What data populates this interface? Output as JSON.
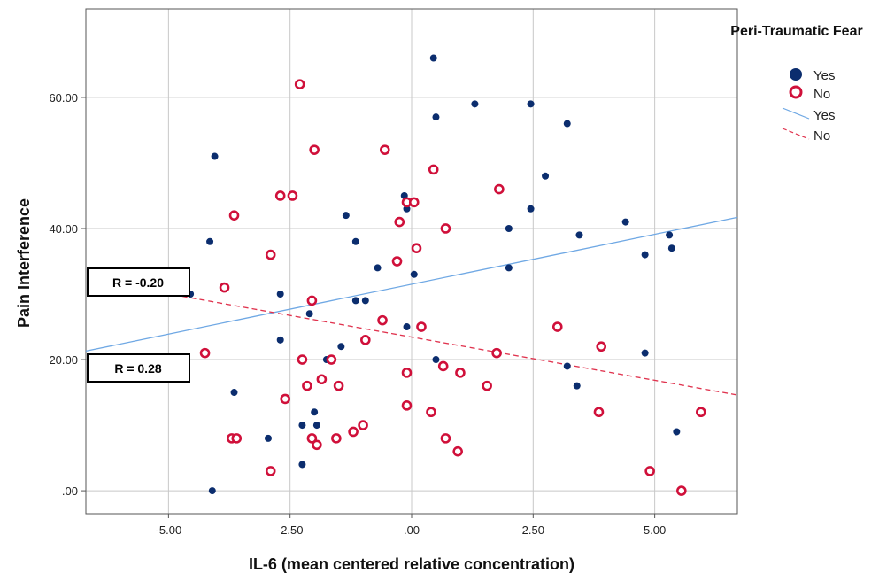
{
  "chart_data": {
    "type": "scatter",
    "title": "",
    "xlabel": "IL-6 (mean centered relative concentration)",
    "ylabel": "Pain Interference",
    "xlim": [
      -6.7,
      6.7
    ],
    "ylim": [
      -3.5,
      73.5
    ],
    "x_ticks": [
      -5,
      -2.5,
      0,
      2.5,
      5
    ],
    "x_tick_labels": [
      "-5.00",
      "-2.50",
      ".00",
      "2.50",
      "5.00"
    ],
    "y_ticks": [
      0,
      20,
      40,
      60
    ],
    "y_tick_labels": [
      ".00",
      "20.00",
      "40.00",
      "60.00"
    ],
    "grid": true,
    "legend_position": "top-right",
    "legend_title": "Peri-Traumatic Fear",
    "colors": {
      "yes": "#0b2d6e",
      "no": "#d0103a",
      "yes_line": "#6fa8e4",
      "no_line": "#e0344f"
    },
    "series": [
      {
        "name": "Yes",
        "marker": "filled-circle",
        "points": [
          [
            0.45,
            66
          ],
          [
            1.3,
            59
          ],
          [
            2.45,
            59
          ],
          [
            3.2,
            56
          ],
          [
            0.5,
            57
          ],
          [
            -4.05,
            51
          ],
          [
            2.75,
            48
          ],
          [
            -0.15,
            45
          ],
          [
            -0.1,
            43
          ],
          [
            2.45,
            43
          ],
          [
            -1.35,
            42
          ],
          [
            4.4,
            41
          ],
          [
            2.0,
            40
          ],
          [
            -4.15,
            38
          ],
          [
            -1.15,
            38
          ],
          [
            3.45,
            39
          ],
          [
            5.3,
            39
          ],
          [
            5.35,
            37
          ],
          [
            4.8,
            36
          ],
          [
            -2.9,
            36
          ],
          [
            -0.7,
            34
          ],
          [
            2.0,
            34
          ],
          [
            0.05,
            33
          ],
          [
            -4.55,
            30
          ],
          [
            -2.7,
            30
          ],
          [
            -1.15,
            29
          ],
          [
            -0.95,
            29
          ],
          [
            -2.1,
            27
          ],
          [
            -0.1,
            25
          ],
          [
            -2.7,
            23
          ],
          [
            -1.45,
            22
          ],
          [
            4.8,
            21
          ],
          [
            -1.75,
            20
          ],
          [
            0.5,
            20
          ],
          [
            3.2,
            19
          ],
          [
            -3.65,
            15
          ],
          [
            3.4,
            16
          ],
          [
            -2.0,
            12
          ],
          [
            -2.25,
            10
          ],
          [
            -1.95,
            10
          ],
          [
            -2.95,
            8
          ],
          [
            5.45,
            9
          ],
          [
            -2.25,
            4
          ],
          [
            -4.1,
            0
          ]
        ]
      },
      {
        "name": "No",
        "marker": "open-circle",
        "points": [
          [
            -2.3,
            62
          ],
          [
            -2.0,
            52
          ],
          [
            -0.55,
            52
          ],
          [
            0.45,
            49
          ],
          [
            1.8,
            46
          ],
          [
            -2.7,
            45
          ],
          [
            -2.45,
            45
          ],
          [
            -0.1,
            44
          ],
          [
            0.05,
            44
          ],
          [
            -3.65,
            42
          ],
          [
            -0.25,
            41
          ],
          [
            0.7,
            40
          ],
          [
            0.1,
            37
          ],
          [
            -2.9,
            36
          ],
          [
            -0.3,
            35
          ],
          [
            -3.85,
            31
          ],
          [
            -2.05,
            29
          ],
          [
            -0.6,
            26
          ],
          [
            0.2,
            25
          ],
          [
            3.0,
            25
          ],
          [
            -0.95,
            23
          ],
          [
            3.9,
            22
          ],
          [
            -4.25,
            21
          ],
          [
            1.75,
            21
          ],
          [
            -2.25,
            20
          ],
          [
            -1.65,
            20
          ],
          [
            0.65,
            19
          ],
          [
            -0.1,
            18
          ],
          [
            1.0,
            18
          ],
          [
            -1.85,
            17
          ],
          [
            -2.15,
            16
          ],
          [
            -1.5,
            16
          ],
          [
            1.55,
            16
          ],
          [
            -2.6,
            14
          ],
          [
            -0.1,
            13
          ],
          [
            0.4,
            12
          ],
          [
            3.85,
            12
          ],
          [
            5.95,
            12
          ],
          [
            -1.0,
            10
          ],
          [
            -1.2,
            9
          ],
          [
            -3.7,
            8
          ],
          [
            -3.6,
            8
          ],
          [
            -2.05,
            8
          ],
          [
            -1.55,
            8
          ],
          [
            0.7,
            8
          ],
          [
            -1.95,
            7
          ],
          [
            0.95,
            6
          ],
          [
            -2.9,
            3
          ],
          [
            4.9,
            3
          ],
          [
            5.55,
            0
          ]
        ]
      }
    ],
    "fit_lines": [
      {
        "name": "Yes",
        "style": "solid",
        "x": [
          -6.7,
          6.7
        ],
        "y": [
          21.3,
          41.7
        ]
      },
      {
        "name": "No",
        "style": "dashed",
        "x": [
          -4.9,
          6.7
        ],
        "y": [
          29.9,
          14.6
        ]
      }
    ],
    "annotations": [
      {
        "id": "r-no",
        "text": "R = -0.20"
      },
      {
        "id": "r-yes",
        "text": "R = 0.28"
      }
    ]
  }
}
